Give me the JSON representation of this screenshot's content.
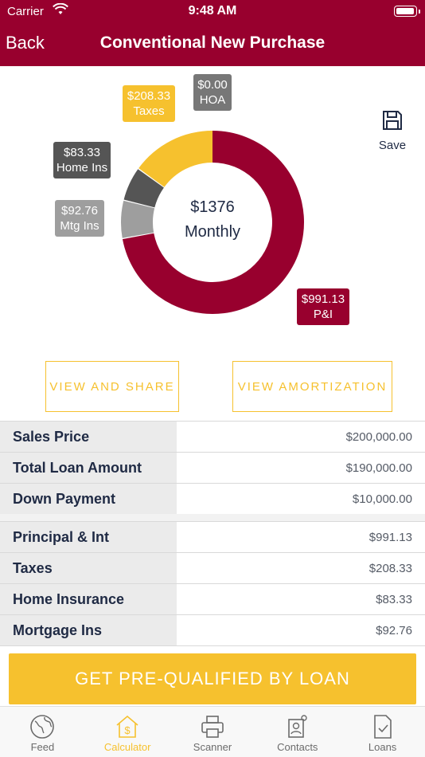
{
  "status_bar": {
    "carrier": "Carrier",
    "time": "9:48 AM"
  },
  "nav": {
    "back_label": "Back",
    "title": "Conventional New Purchase"
  },
  "save": {
    "label": "Save"
  },
  "chart_data": {
    "type": "pie",
    "donut": true,
    "center_value": "$1376",
    "center_label": "Monthly",
    "slices": [
      {
        "label": "P&I",
        "value": 991.13,
        "display": "$991.13",
        "color": "#98002e"
      },
      {
        "label": "Mtg Ins",
        "value": 92.76,
        "display": "$92.76",
        "color": "#9e9e9e"
      },
      {
        "label": "Home Ins",
        "value": 83.33,
        "display": "$83.33",
        "color": "#555555"
      },
      {
        "label": "Taxes",
        "value": 208.33,
        "display": "$208.33",
        "color": "#f6c12e"
      },
      {
        "label": "HOA",
        "value": 0.0,
        "display": "$0.00",
        "color": "#777777"
      }
    ]
  },
  "buttons": {
    "view_share": "VIEW AND SHARE",
    "view_amortization": "VIEW AMORTIZATION"
  },
  "loan_table": [
    {
      "label": "Sales Price",
      "value": "$200,000.00"
    },
    {
      "label": "Total Loan Amount",
      "value": "$190,000.00"
    },
    {
      "label": "Down Payment",
      "value": "$10,000.00"
    }
  ],
  "payment_table": [
    {
      "label": "Principal & Int",
      "value": "$991.13"
    },
    {
      "label": "Taxes",
      "value": "$208.33"
    },
    {
      "label": "Home Insurance",
      "value": "$83.33"
    },
    {
      "label": "Mortgage Ins",
      "value": "$92.76"
    }
  ],
  "cta": {
    "label": "GET PRE-QUALIFIED BY LOAN"
  },
  "tabs": [
    {
      "label": "Feed",
      "icon": "globe-icon"
    },
    {
      "label": "Calculator",
      "icon": "calculator-house-icon",
      "active": true
    },
    {
      "label": "Scanner",
      "icon": "printer-icon"
    },
    {
      "label": "Contacts",
      "icon": "contacts-icon"
    },
    {
      "label": "Loans",
      "icon": "checklist-icon"
    }
  ],
  "colors": {
    "brand": "#98002e",
    "accent": "#f6c12e"
  }
}
